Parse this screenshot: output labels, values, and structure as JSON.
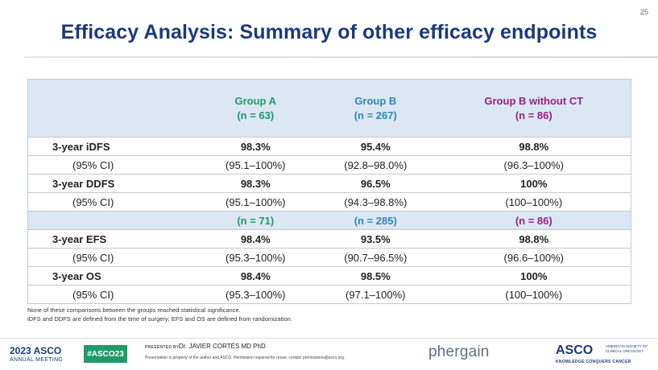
{
  "slide_number": "25",
  "title": "Efficacy Analysis: Summary of other efficacy endpoints",
  "table": {
    "groups": [
      {
        "name": "Group A",
        "n": "(n = 63)",
        "color": "#1f9a6a"
      },
      {
        "name": "Group B",
        "n": "(n = 267)",
        "color": "#2f86b3"
      },
      {
        "name": "Group B without CT",
        "n": "(n = 86)",
        "color": "#9b1e7e"
      }
    ],
    "rows": [
      {
        "label": "3-year iDFS",
        "values": [
          "98.3%",
          "95.4%",
          "98.8%"
        ]
      },
      {
        "label": "(95% CI)",
        "values": [
          "(95.1–100%)",
          "(92.8–98.0%)",
          "(96.3–100%)"
        ]
      },
      {
        "label": "3-year DDFS",
        "values": [
          "98.3%",
          "96.5%",
          "100%"
        ]
      },
      {
        "label": "(95% CI)",
        "values": [
          "(95.1–100%)",
          "(94.3–98.8%)",
          "(100–100%)"
        ]
      },
      {
        "label": "",
        "values": [
          "(n = 71)",
          "(n = 285)",
          "(n = 86)"
        ]
      },
      {
        "label": "3-year EFS",
        "values": [
          "98.4%",
          "93.5%",
          "98.8%"
        ]
      },
      {
        "label": "(95% CI)",
        "values": [
          "(95.3–100%)",
          "(90.7–96.5%)",
          "(96.6–100%)"
        ]
      },
      {
        "label": "3-year OS",
        "values": [
          "98.4%",
          "98.5%",
          "100%"
        ]
      },
      {
        "label": "(95% CI)",
        "values": [
          "(95.3–100%)",
          "(97.1–100%)",
          "(100–100%)"
        ]
      }
    ]
  },
  "footnotes": [
    "None of these comparisons between the groups reached statistical significance.",
    "iDFS and DDFS are defined from the time of surgery; EFS and OS are defined from randomization."
  ],
  "footer": {
    "year": "2023",
    "asco_brand": "ASCO",
    "meeting": "ANNUAL MEETING",
    "hashtag": "#ASCO23",
    "presented_by": "PRESENTED BY:",
    "presenter": "Dr. JAVIER CORTÉS MD PhD",
    "property_note": "Presentation is property of the author and ASCO. Permission required for reuse; contact permissions@asco.org.",
    "sponsor": "phergain",
    "asco_logo": "ASCO",
    "asco_society": "AMERICAN SOCIETY OF CLINICAL ONCOLOGY",
    "asco_tagline": "KNOWLEDGE CONQUERS CANCER"
  }
}
